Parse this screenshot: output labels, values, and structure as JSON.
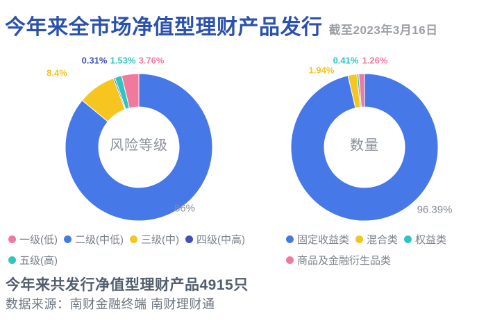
{
  "header": {
    "title": "今年来全市场净值型理财产品发行",
    "as_of": "截至2023年3月16日"
  },
  "charts": [
    {
      "key": "risk-level",
      "center_label": "风险等级",
      "slices": [
        {
          "key": "level2-mid-low",
          "name": "二级(中低)",
          "value": 86,
          "label": "86%",
          "color": "#4678E8"
        },
        {
          "key": "level3-mid",
          "name": "三级(中)",
          "value": 8.4,
          "label": "8.4%",
          "color": "#F6C51F"
        },
        {
          "key": "level4-mid-high",
          "name": "四级(中高)",
          "value": 0.31,
          "label": "0.31%",
          "color": "#3A50BC"
        },
        {
          "key": "level5-high",
          "name": "五级(高)",
          "value": 1.53,
          "label": "1.53%",
          "color": "#2EC5C0"
        },
        {
          "key": "level1-low",
          "name": "一级(低)",
          "value": 3.76,
          "label": "3.76%",
          "color": "#F1799E"
        }
      ],
      "legend": [
        {
          "key": "level1-low",
          "label": "一级(低)",
          "color": "#F1799E"
        },
        {
          "key": "level2-mid-low",
          "label": "二级(中低)",
          "color": "#4678E8"
        },
        {
          "key": "level3-mid",
          "label": "三级(中)",
          "color": "#F6C51F"
        },
        {
          "key": "level4-mid-high",
          "label": "四级(中高)",
          "color": "#3F51C1"
        },
        {
          "key": "level5-high",
          "label": "五级(高)",
          "color": "#2EC5C0"
        }
      ]
    },
    {
      "key": "quantity",
      "center_label": "数量",
      "slices": [
        {
          "key": "fixed-income",
          "name": "固定收益类",
          "value": 96.39,
          "label": "96.39%",
          "color": "#4678E8"
        },
        {
          "key": "mixed",
          "name": "混合类",
          "value": 1.94,
          "label": "1.94%",
          "color": "#F6C51F"
        },
        {
          "key": "equity",
          "name": "权益类",
          "value": 0.41,
          "label": "0.41%",
          "color": "#2EC5C0"
        },
        {
          "key": "commodity-derivatives",
          "name": "商品及金融衍生品类",
          "value": 1.26,
          "label": "1.26%",
          "color": "#F1799E"
        }
      ],
      "legend": [
        {
          "key": "fixed-income",
          "label": "固定收益类",
          "color": "#4678E8"
        },
        {
          "key": "mixed",
          "label": "混合类",
          "color": "#F6C51F"
        },
        {
          "key": "equity",
          "label": "权益类",
          "color": "#2EC5C0"
        },
        {
          "key": "commodity-derivatives",
          "label": "商品及金融衍生品类",
          "color": "#F1799E"
        }
      ]
    }
  ],
  "footer": {
    "summary": "今年来共发行净值型理财产品4915只",
    "source": "数据来源：南财金融终端 南财理财通"
  },
  "chart_data": [
    {
      "type": "pie",
      "subtype": "donut",
      "title": "风险等级",
      "labels": [
        "二级(中低)",
        "三级(中)",
        "四级(中高)",
        "五级(高)",
        "一级(低)"
      ],
      "values": [
        86,
        8.4,
        0.31,
        1.53,
        3.76
      ],
      "unit": "%",
      "colors": [
        "#4678E8",
        "#F6C51F",
        "#3A50BC",
        "#2EC5C0",
        "#F1799E"
      ],
      "start_angle": "12-o'clock, clockwise",
      "legend_position": "bottom"
    },
    {
      "type": "pie",
      "subtype": "donut",
      "title": "数量",
      "labels": [
        "固定收益类",
        "混合类",
        "权益类",
        "商品及金融衍生品类"
      ],
      "values": [
        96.39,
        1.94,
        0.41,
        1.26
      ],
      "unit": "%",
      "colors": [
        "#4678E8",
        "#F6C51F",
        "#2EC5C0",
        "#F1799E"
      ],
      "start_angle": "12-o'clock, clockwise",
      "legend_position": "bottom"
    }
  ]
}
